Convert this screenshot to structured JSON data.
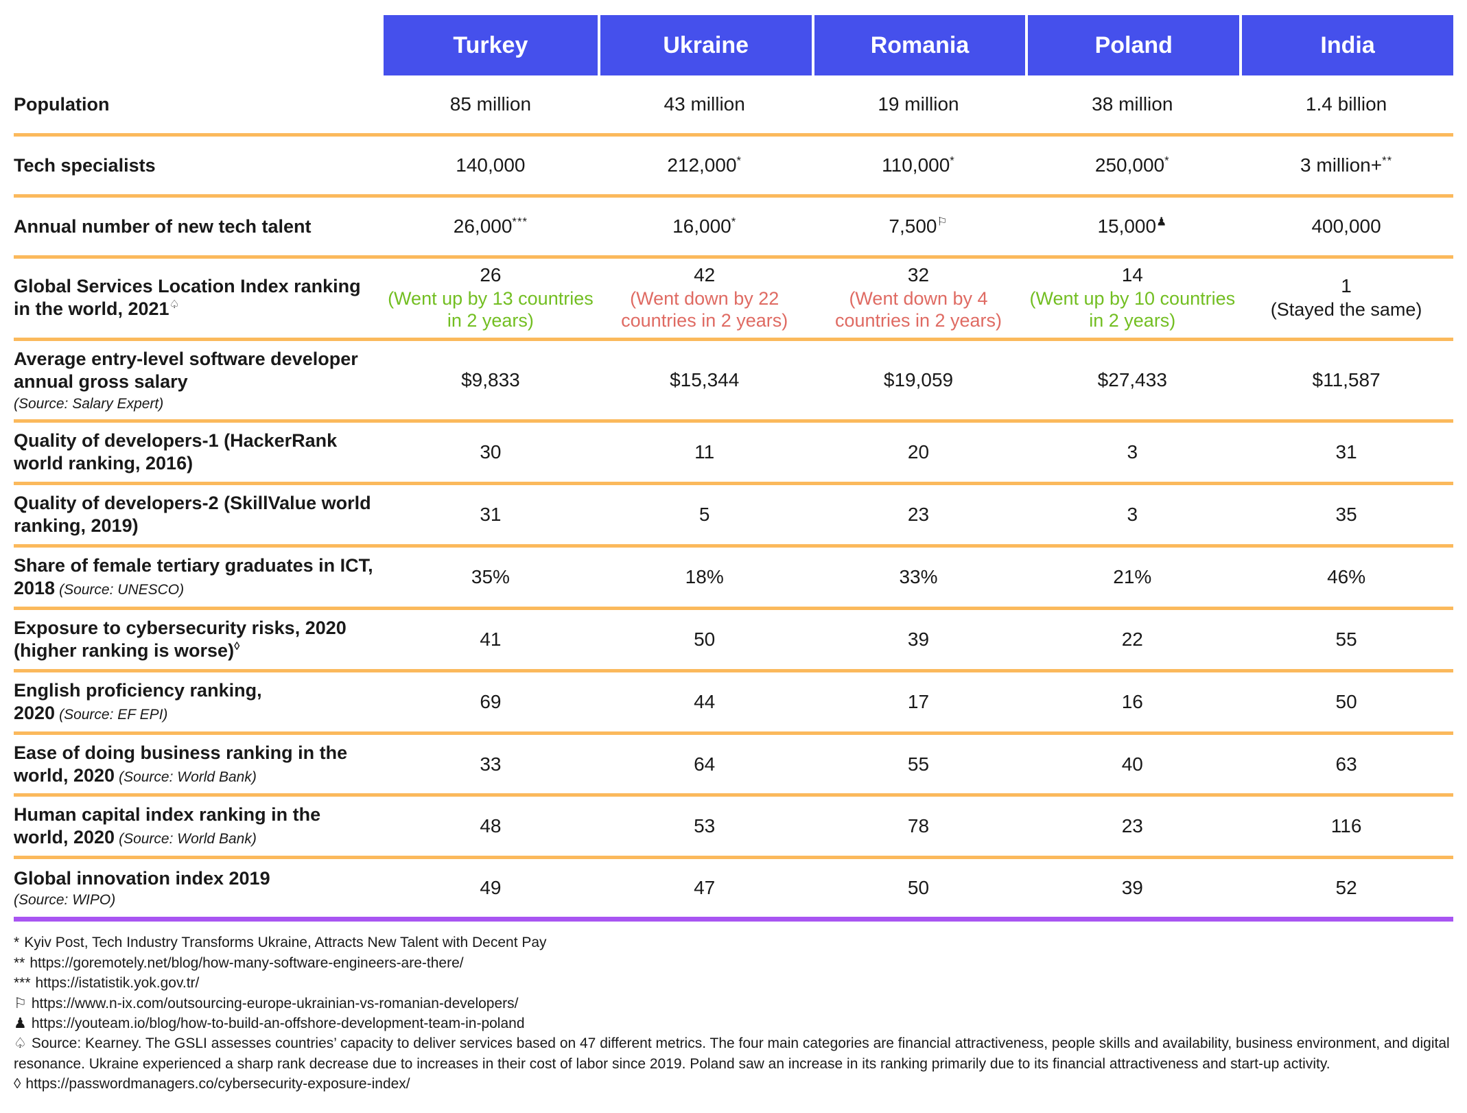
{
  "colors": {
    "header_bg": "#4550EC",
    "divider_orange": "#FBB95C",
    "divider_purple": "#A855F2",
    "positive_green": "#72BE21",
    "negative_red": "#DF6A62",
    "text_black": "#191919"
  },
  "table": {
    "columns": [
      "Turkey",
      "Ukraine",
      "Romania",
      "Poland",
      "India"
    ],
    "rows": [
      {
        "label": "Population",
        "cells": [
          {
            "v": "85 million"
          },
          {
            "v": "43 million"
          },
          {
            "v": "19 million"
          },
          {
            "v": "38 million"
          },
          {
            "v": "1.4 billion"
          }
        ]
      },
      {
        "label": "Tech specialists",
        "cells": [
          {
            "v": "140,000"
          },
          {
            "v": "212,000",
            "sup": "*"
          },
          {
            "v": "110,000",
            "sup": "*"
          },
          {
            "v": "250,000",
            "sup": "*"
          },
          {
            "v": "3 million+",
            "sup": "**"
          }
        ]
      },
      {
        "label": "Annual number of new tech talent",
        "cells": [
          {
            "v": "26,000",
            "sup": "***"
          },
          {
            "v": "16,000",
            "sup": "*"
          },
          {
            "v": "7,500",
            "sup": "⚐"
          },
          {
            "v": "15,000",
            "sup": "♟"
          },
          {
            "v": "400,000"
          }
        ]
      },
      {
        "label": "Global Services Location Index ranking in the world, 2021",
        "label_sup": "♤",
        "cells": [
          {
            "v": "26",
            "note": "(Went up by 13 countries in 2 years)",
            "note_color": "#72BE21"
          },
          {
            "v": "42",
            "note": "(Went down by 22 countries in 2 years)",
            "note_color": "#DF6A62"
          },
          {
            "v": "32",
            "note": "(Went down by 4 countries in 2 years)",
            "note_color": "#DF6A62"
          },
          {
            "v": "14",
            "note": "(Went up by 10 countries in 2 years)",
            "note_color": "#72BE21"
          },
          {
            "v": "1",
            "note": "(Stayed the same)",
            "note_color": "#191919"
          }
        ]
      },
      {
        "label": "Average entry-level software developer annual gross salary",
        "source_block": "(Source: Salary Expert)",
        "cells": [
          {
            "v": "$9,833"
          },
          {
            "v": "$15,344"
          },
          {
            "v": "$19,059"
          },
          {
            "v": "$27,433"
          },
          {
            "v": "$11,587"
          }
        ]
      },
      {
        "label": "Quality of developers-1 (HackerRank world ranking, 2016)",
        "cells": [
          {
            "v": "30"
          },
          {
            "v": "11"
          },
          {
            "v": "20"
          },
          {
            "v": "3"
          },
          {
            "v": "31"
          }
        ]
      },
      {
        "label": "Quality of developers-2 (SkillValue world ranking, 2019)",
        "cells": [
          {
            "v": "31"
          },
          {
            "v": "5"
          },
          {
            "v": "23"
          },
          {
            "v": "3"
          },
          {
            "v": "35"
          }
        ]
      },
      {
        "label": "Share of female tertiary graduates in ICT, 2018",
        "source_inline": "(Source: UNESCO)",
        "cells": [
          {
            "v": "35%"
          },
          {
            "v": "18%"
          },
          {
            "v": "33%"
          },
          {
            "v": "21%"
          },
          {
            "v": "46%"
          }
        ]
      },
      {
        "label": "Exposure to cybersecurity risks, 2020 (higher ranking is worse)",
        "label_sup": "◊",
        "cells": [
          {
            "v": "41"
          },
          {
            "v": "50"
          },
          {
            "v": "39"
          },
          {
            "v": "22"
          },
          {
            "v": "55"
          }
        ]
      },
      {
        "label": "English proficiency ranking, 2020",
        "source_inline": "(Source: EF EPI)",
        "cells": [
          {
            "v": "69"
          },
          {
            "v": "44"
          },
          {
            "v": "17"
          },
          {
            "v": "16"
          },
          {
            "v": "50"
          }
        ]
      },
      {
        "label": "Ease of doing business ranking in the world, 2020",
        "source_inline": "(Source: World Bank)",
        "cells": [
          {
            "v": "33"
          },
          {
            "v": "64"
          },
          {
            "v": "55"
          },
          {
            "v": "40"
          },
          {
            "v": "63"
          }
        ]
      },
      {
        "label": "Human capital index ranking in the world, 2020",
        "source_inline": "(Source: World Bank)",
        "cells": [
          {
            "v": "48"
          },
          {
            "v": "53"
          },
          {
            "v": "78"
          },
          {
            "v": "23"
          },
          {
            "v": "116"
          }
        ]
      },
      {
        "label": "Global innovation index 2019",
        "source_block": "(Source: WIPO)",
        "cells": [
          {
            "v": "49"
          },
          {
            "v": "47"
          },
          {
            "v": "50"
          },
          {
            "v": "39"
          },
          {
            "v": "52"
          }
        ]
      }
    ]
  },
  "footnotes": [
    {
      "sym": "*",
      "text": "Kyiv Post, Tech Industry Transforms Ukraine, Attracts New Talent with Decent Pay"
    },
    {
      "sym": "**",
      "text": "https://goremotely.net/blog/how-many-software-engineers-are-there/"
    },
    {
      "sym": "***",
      "text": "https://istatistik.yok.gov.tr/"
    },
    {
      "sym": "⚐",
      "text": "https://www.n-ix.com/outsourcing-europe-ukrainian-vs-romanian-developers/"
    },
    {
      "sym": "♟",
      "text": "https://youteam.io/blog/how-to-build-an-offshore-development-team-in-poland"
    },
    {
      "sym": "♤",
      "text": "Source: Kearney. The GSLI assesses countries’ capacity to deliver services based on 47 different metrics. The four main categories are financial attractiveness, people skills and availability, business environment, and digital resonance. Ukraine experienced a sharp rank decrease due to increases in their cost of labor since 2019. Poland saw an increase in its ranking primarily due to its financial attractiveness and start-up activity."
    },
    {
      "sym": "◊",
      "text": "https://passwordmanagers.co/cybersecurity-exposure-index/"
    }
  ]
}
